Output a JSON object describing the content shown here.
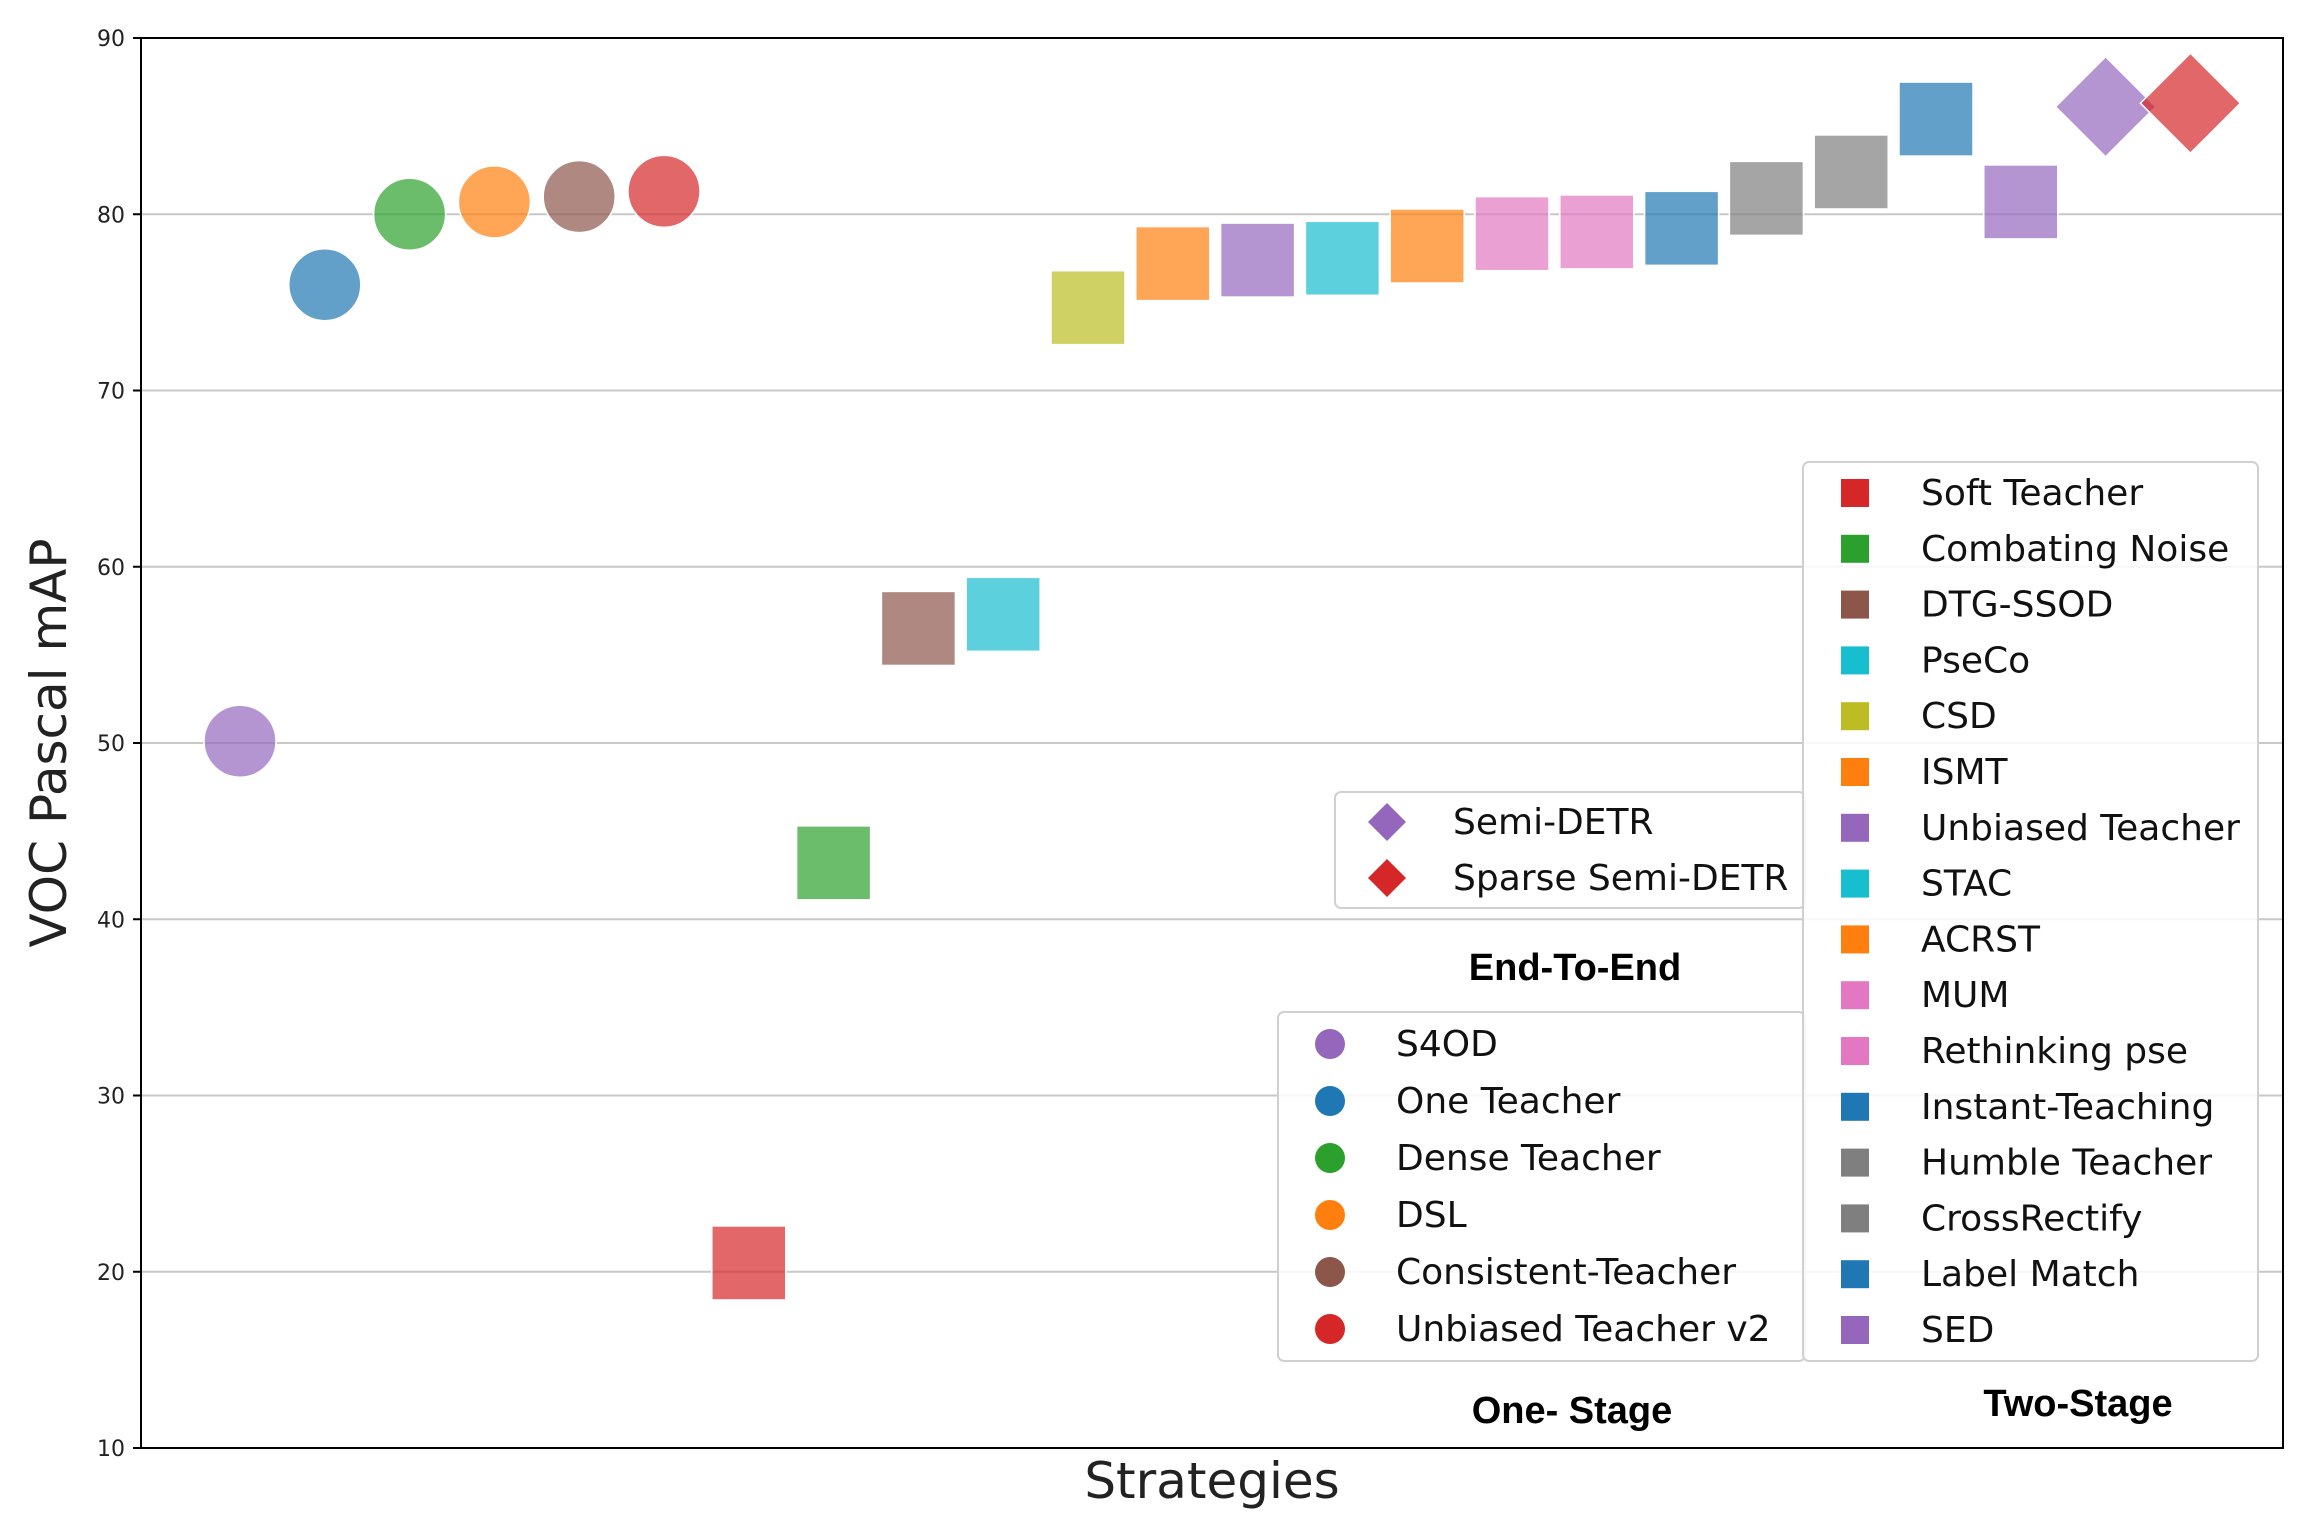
{
  "chart_data": {
    "type": "scatter",
    "title": "",
    "xlabel": "Strategies",
    "ylabel": "VOC Pascal mAP",
    "ylim": [
      10,
      90
    ],
    "yticks": [
      10,
      20,
      30,
      40,
      50,
      60,
      70,
      80,
      90
    ],
    "grid": "horizontal",
    "colors": {
      "blue": "#1f77b4",
      "orange": "#ff7f0e",
      "green": "#2ca02c",
      "red": "#d62728",
      "purple": "#9467bd",
      "brown": "#8c564b",
      "pink": "#e377c2",
      "gray": "#7f7f7f",
      "olive": "#bcbd22",
      "cyan": "#17becf"
    },
    "series": [
      {
        "group": "One-Stage",
        "name": "S4OD",
        "marker": "circle",
        "color": "#9467bd",
        "x": 1,
        "y": 50.1
      },
      {
        "group": "One-Stage",
        "name": "One Teacher",
        "marker": "circle",
        "color": "#1f77b4",
        "x": 2,
        "y": 76.0
      },
      {
        "group": "One-Stage",
        "name": "Dense Teacher",
        "marker": "circle",
        "color": "#2ca02c",
        "x": 3,
        "y": 80.0
      },
      {
        "group": "One-Stage",
        "name": "DSL",
        "marker": "circle",
        "color": "#ff7f0e",
        "x": 4,
        "y": 80.7
      },
      {
        "group": "One-Stage",
        "name": "Consistent-Teacher",
        "marker": "circle",
        "color": "#8c564b",
        "x": 5,
        "y": 81.0
      },
      {
        "group": "One-Stage",
        "name": "Unbiased Teacher v2",
        "marker": "circle",
        "color": "#d62728",
        "x": 6,
        "y": 81.3
      },
      {
        "group": "Two-Stage",
        "name": "Soft Teacher",
        "marker": "square",
        "color": "#d62728",
        "x": 7,
        "y": 20.5
      },
      {
        "group": "Two-Stage",
        "name": "Combating Noise",
        "marker": "square",
        "color": "#2ca02c",
        "x": 8,
        "y": 43.2
      },
      {
        "group": "Two-Stage",
        "name": "DTG-SSOD",
        "marker": "square",
        "color": "#8c564b",
        "x": 9,
        "y": 56.5
      },
      {
        "group": "Two-Stage",
        "name": "PseCo",
        "marker": "square",
        "color": "#17becf",
        "x": 10,
        "y": 57.3
      },
      {
        "group": "Two-Stage",
        "name": "CSD",
        "marker": "square",
        "color": "#bcbd22",
        "x": 11,
        "y": 74.7
      },
      {
        "group": "Two-Stage",
        "name": "ISMT",
        "marker": "square",
        "color": "#ff7f0e",
        "x": 12,
        "y": 77.2
      },
      {
        "group": "Two-Stage",
        "name": "Unbiased Teacher",
        "marker": "square",
        "color": "#9467bd",
        "x": 13,
        "y": 77.4
      },
      {
        "group": "Two-Stage",
        "name": "STAC",
        "marker": "square",
        "color": "#17becf",
        "x": 14,
        "y": 77.5
      },
      {
        "group": "Two-Stage",
        "name": "ACRST",
        "marker": "square",
        "color": "#ff7f0e",
        "x": 15,
        "y": 78.2
      },
      {
        "group": "Two-Stage",
        "name": "MUM",
        "marker": "square",
        "color": "#e377c2",
        "x": 16,
        "y": 78.9
      },
      {
        "group": "Two-Stage",
        "name": "Rethinking pse",
        "marker": "square",
        "color": "#e377c2",
        "x": 17,
        "y": 79.0
      },
      {
        "group": "Two-Stage",
        "name": "Instant-Teaching",
        "marker": "square",
        "color": "#1f77b4",
        "x": 18,
        "y": 79.2
      },
      {
        "group": "Two-Stage",
        "name": "Humble Teacher",
        "marker": "square",
        "color": "#7f7f7f",
        "x": 19,
        "y": 80.9
      },
      {
        "group": "Two-Stage",
        "name": "CrossRectify",
        "marker": "square",
        "color": "#7f7f7f",
        "x": 20,
        "y": 82.4
      },
      {
        "group": "Two-Stage",
        "name": "Label Match",
        "marker": "square",
        "color": "#1f77b4",
        "x": 21,
        "y": 85.4
      },
      {
        "group": "Two-Stage",
        "name": "SED",
        "marker": "square",
        "color": "#9467bd",
        "x": 22,
        "y": 80.7
      },
      {
        "group": "End-To-End",
        "name": "Semi-DETR",
        "marker": "diamond",
        "color": "#9467bd",
        "x": 23,
        "y": 86.1
      },
      {
        "group": "End-To-End",
        "name": "Sparse Semi-DETR",
        "marker": "diamond",
        "color": "#d62728",
        "x": 24,
        "y": 86.3
      }
    ],
    "legends": [
      {
        "title": "End-To-End",
        "entries": [
          {
            "label": "Semi-DETR",
            "marker": "diamond",
            "color": "#9467bd"
          },
          {
            "label": "Sparse Semi-DETR",
            "marker": "diamond",
            "color": "#d62728"
          }
        ]
      },
      {
        "title": "One- Stage",
        "entries": [
          {
            "label": "S4OD",
            "marker": "circle",
            "color": "#9467bd"
          },
          {
            "label": "One Teacher",
            "marker": "circle",
            "color": "#1f77b4"
          },
          {
            "label": "Dense Teacher",
            "marker": "circle",
            "color": "#2ca02c"
          },
          {
            "label": "DSL",
            "marker": "circle",
            "color": "#ff7f0e"
          },
          {
            "label": "Consistent-Teacher",
            "marker": "circle",
            "color": "#8c564b"
          },
          {
            "label": "Unbiased Teacher v2",
            "marker": "circle",
            "color": "#d62728"
          }
        ]
      },
      {
        "title": "Two-Stage",
        "entries": [
          {
            "label": "Soft Teacher",
            "marker": "square",
            "color": "#d62728"
          },
          {
            "label": "Combating Noise",
            "marker": "square",
            "color": "#2ca02c"
          },
          {
            "label": "DTG-SSOD",
            "marker": "square",
            "color": "#8c564b"
          },
          {
            "label": "PseCo",
            "marker": "square",
            "color": "#17becf"
          },
          {
            "label": "CSD",
            "marker": "square",
            "color": "#bcbd22"
          },
          {
            "label": "ISMT",
            "marker": "square",
            "color": "#ff7f0e"
          },
          {
            "label": "Unbiased Teacher",
            "marker": "square",
            "color": "#9467bd"
          },
          {
            "label": "STAC",
            "marker": "square",
            "color": "#17becf"
          },
          {
            "label": "ACRST",
            "marker": "square",
            "color": "#ff7f0e"
          },
          {
            "label": "MUM",
            "marker": "square",
            "color": "#e377c2"
          },
          {
            "label": "Rethinking pse",
            "marker": "square",
            "color": "#e377c2"
          },
          {
            "label": "Instant-Teaching",
            "marker": "square",
            "color": "#1f77b4"
          },
          {
            "label": "Humble Teacher",
            "marker": "square",
            "color": "#7f7f7f"
          },
          {
            "label": "CrossRectify",
            "marker": "square",
            "color": "#7f7f7f"
          },
          {
            "label": "Label Match",
            "marker": "square",
            "color": "#1f77b4"
          },
          {
            "label": "SED",
            "marker": "square",
            "color": "#9467bd"
          }
        ]
      }
    ]
  }
}
